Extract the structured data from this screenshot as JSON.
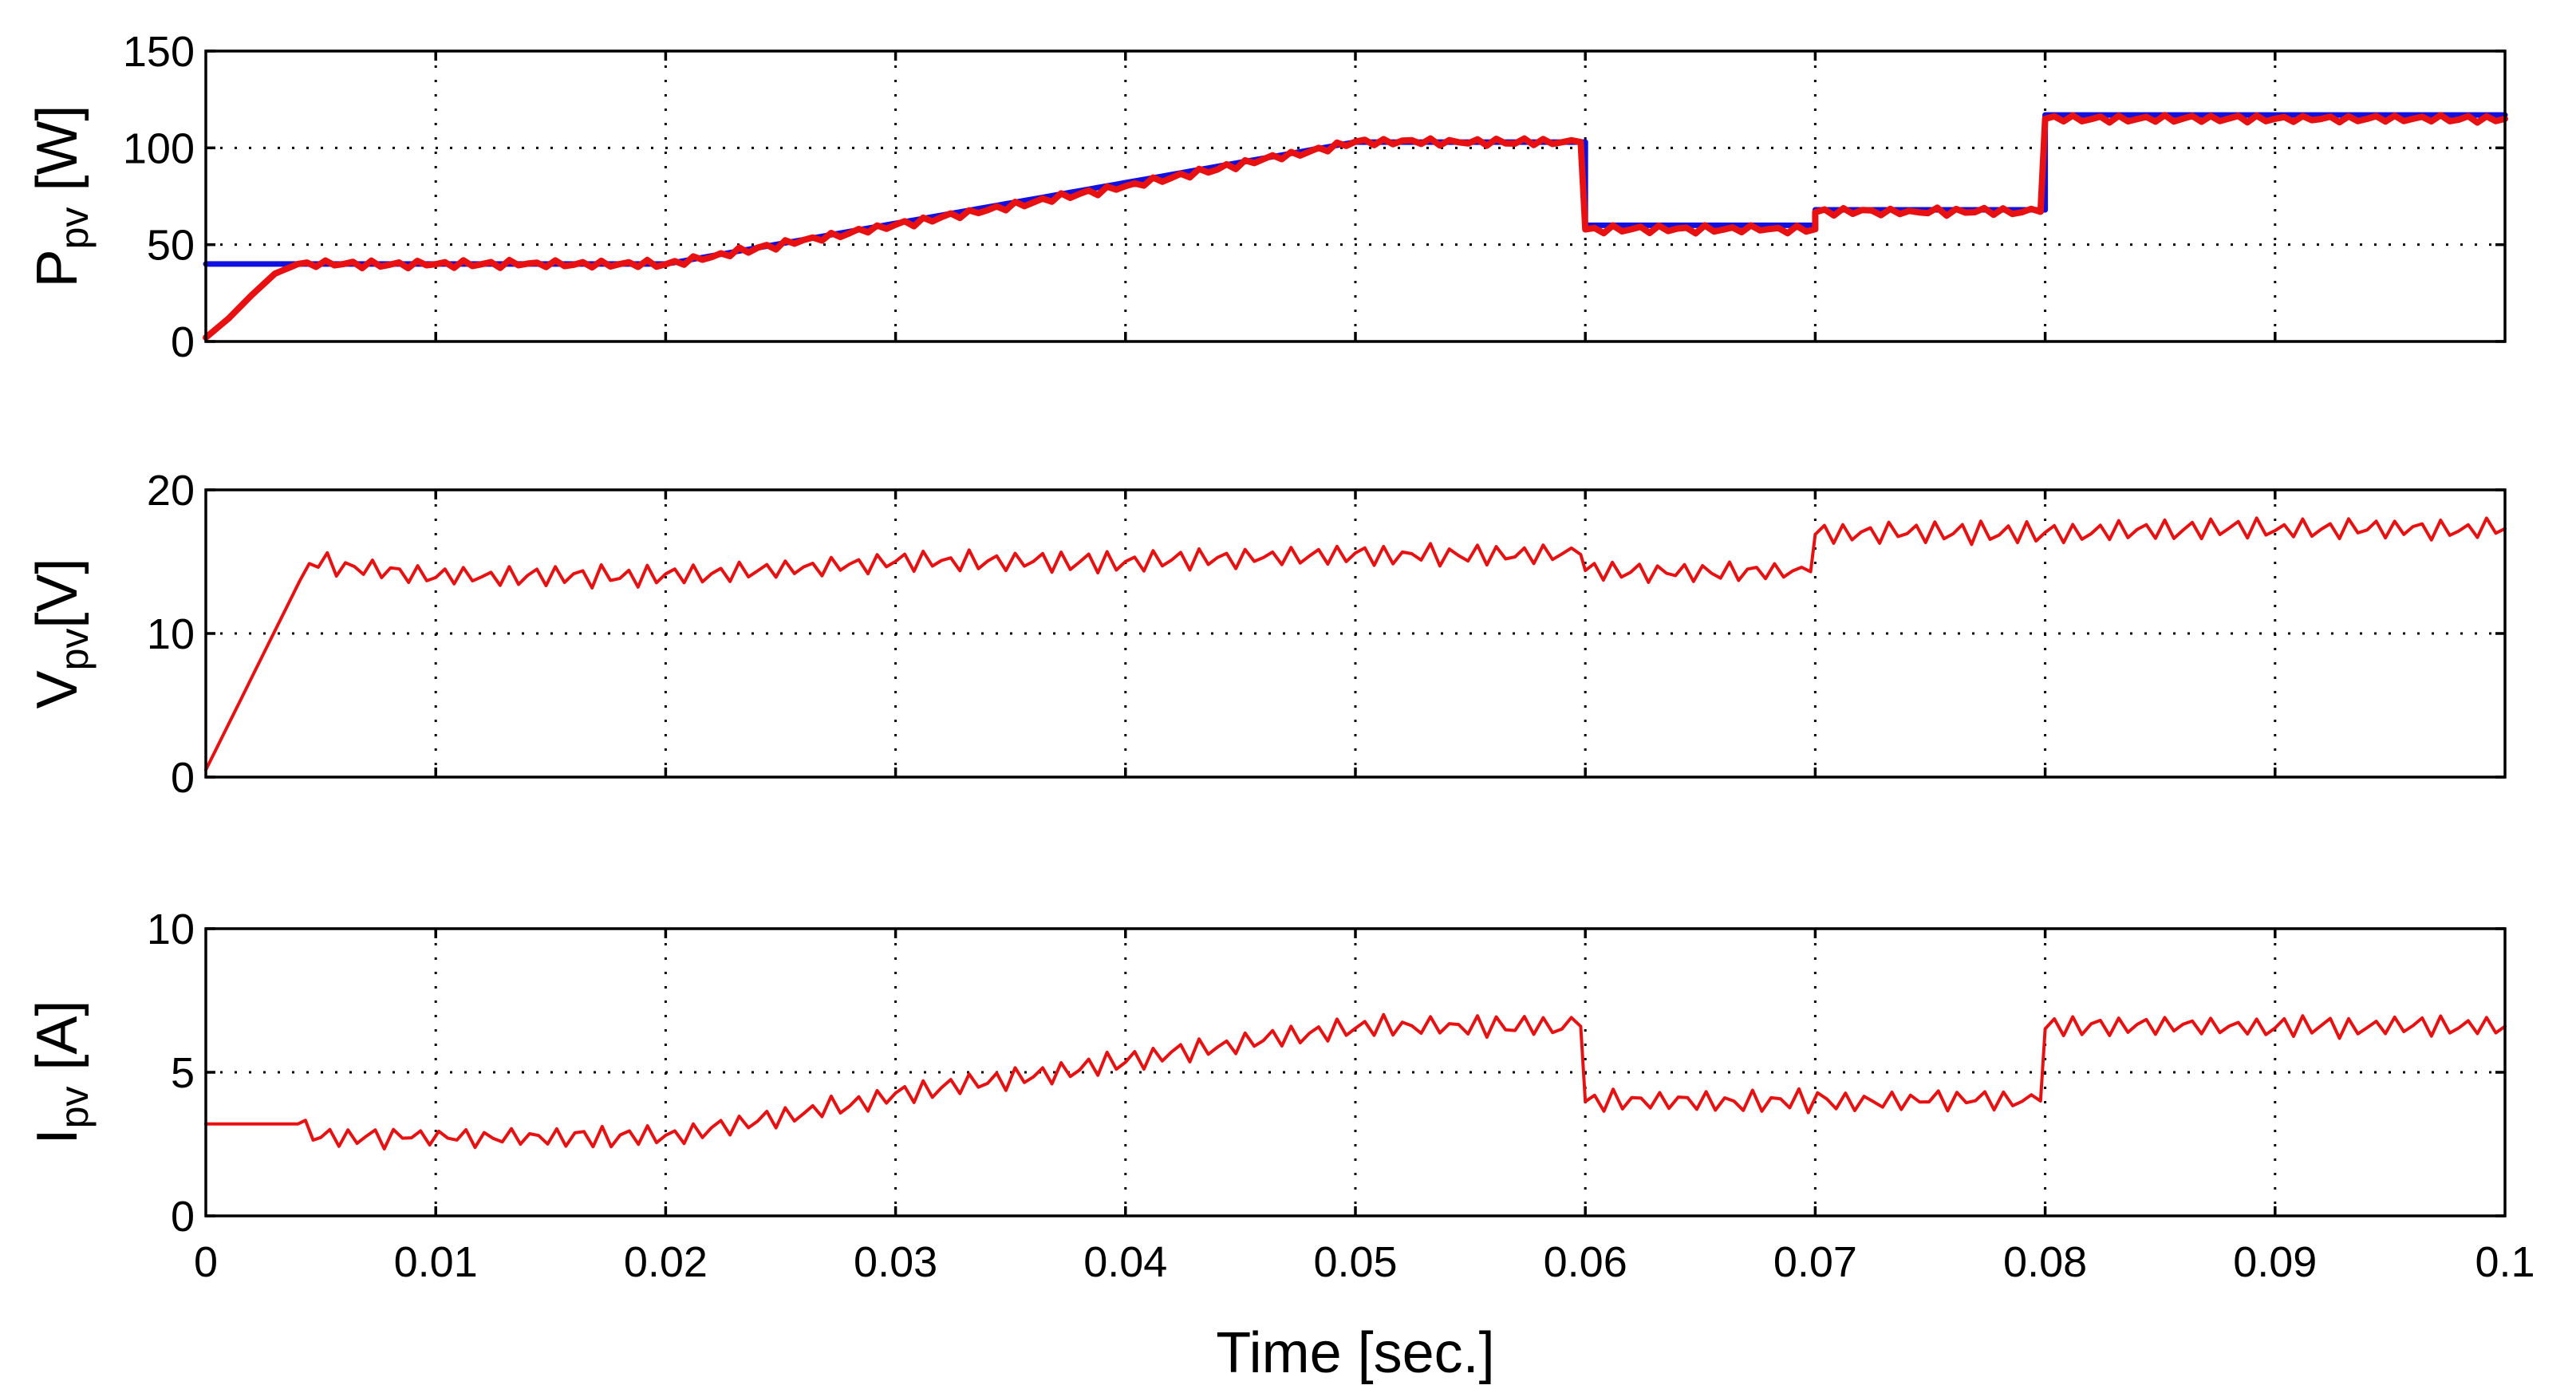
{
  "colors": {
    "reference": "#1010e0",
    "measured": "#e81010",
    "axes": "#000000"
  },
  "chart_data": [
    {
      "type": "line",
      "ylabel_main": "P",
      "ylabel_sub": "pv",
      "ylabel_unit": " [W]",
      "xlim": [
        0,
        0.1
      ],
      "ylim": [
        0,
        150
      ],
      "yticks": [
        "0",
        "50",
        "100",
        "150"
      ],
      "grid": true,
      "series": [
        {
          "role": "reference",
          "color": "#1010e0",
          "x": [
            0,
            0.004,
            0.02,
            0.05,
            0.06,
            0.06,
            0.07,
            0.07,
            0.08,
            0.08,
            0.1
          ],
          "y": [
            40,
            40,
            40,
            103,
            103,
            60,
            60,
            68,
            68,
            117,
            117
          ]
        },
        {
          "role": "measured",
          "color": "#e81010",
          "x": [
            0,
            0.001,
            0.002,
            0.003,
            0.004,
            0.02,
            0.03,
            0.04,
            0.05,
            0.0598,
            0.06,
            0.07,
            0.07,
            0.0798,
            0.08,
            0.1
          ],
          "y": [
            2,
            12,
            24,
            35,
            40,
            40,
            60,
            80,
            103,
            103,
            58,
            58,
            67,
            67,
            115,
            115
          ]
        }
      ]
    },
    {
      "type": "line",
      "ylabel_main": "V",
      "ylabel_sub": "pv",
      "ylabel_unit": "[V]",
      "xlim": [
        0,
        0.1
      ],
      "ylim": [
        0,
        20
      ],
      "yticks": [
        "0",
        "10",
        "20"
      ],
      "grid": true,
      "series": [
        {
          "role": "measured",
          "color": "#e81010",
          "x": [
            0,
            0.0045,
            0.01,
            0.02,
            0.03,
            0.04,
            0.05,
            0.0598,
            0.06,
            0.0698,
            0.07,
            0.08,
            0.09,
            0.1
          ],
          "y": [
            0.5,
            15,
            14,
            14,
            15,
            15,
            15.5,
            15.5,
            14.3,
            14.3,
            17,
            17,
            17.3,
            17.3
          ]
        }
      ]
    },
    {
      "type": "line",
      "ylabel_main": "I",
      "ylabel_sub": "pv",
      "ylabel_unit": "  [A]",
      "xlabel": "Time [sec.]",
      "xlim": [
        0,
        0.1
      ],
      "ylim": [
        0,
        10
      ],
      "yticks": [
        "0",
        "5",
        "10"
      ],
      "xticks": [
        "0",
        "0.01",
        "0.02",
        "0.03",
        "0.04",
        "0.05",
        "0.06",
        "0.07",
        "0.08",
        "0.09",
        "0.1"
      ],
      "grid": true,
      "series": [
        {
          "role": "measured",
          "color": "#e81010",
          "x": [
            0,
            0.004,
            0.005,
            0.02,
            0.022,
            0.03,
            0.04,
            0.05,
            0.0598,
            0.06,
            0.0798,
            0.08,
            0.1
          ],
          "y": [
            3.2,
            3.2,
            2.75,
            2.75,
            3.0,
            4.2,
            5.4,
            6.6,
            6.6,
            4.0,
            4.0,
            6.6,
            6.6
          ]
        }
      ]
    }
  ]
}
